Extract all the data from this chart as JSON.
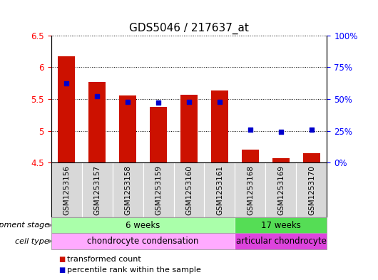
{
  "title": "GDS5046 / 217637_at",
  "samples": [
    "GSM1253156",
    "GSM1253157",
    "GSM1253158",
    "GSM1253159",
    "GSM1253160",
    "GSM1253161",
    "GSM1253168",
    "GSM1253169",
    "GSM1253170"
  ],
  "red_values": [
    6.17,
    5.77,
    5.56,
    5.38,
    5.57,
    5.63,
    4.7,
    4.57,
    4.65
  ],
  "blue_pct": [
    62,
    52,
    48,
    47,
    48,
    48,
    26,
    24,
    26
  ],
  "ylim_left": [
    4.5,
    6.5
  ],
  "ylim_right": [
    0,
    100
  ],
  "yticks_left": [
    4.5,
    5.0,
    5.5,
    6.0,
    6.5
  ],
  "ytick_labels_left": [
    "4.5",
    "5",
    "5.5",
    "6",
    "6.5"
  ],
  "yticks_right": [
    0,
    25,
    50,
    75,
    100
  ],
  "ytick_labels_right": [
    "0%",
    "25%",
    "50%",
    "75%",
    "100%"
  ],
  "bar_bottom": 4.5,
  "red_color": "#cc1100",
  "blue_color": "#0000cc",
  "dev_stage_colors": [
    "#aaffaa",
    "#55dd55"
  ],
  "cell_type_colors": [
    "#ffaaff",
    "#dd44dd"
  ],
  "legend_items": [
    "transformed count",
    "percentile rank within the sample"
  ],
  "background_color": "#ffffff",
  "title_fontsize": 11,
  "tick_fontsize": 8.5,
  "bar_width": 0.55,
  "group_split": 6,
  "dev_stage_labels": [
    "6 weeks",
    "17 weeks"
  ],
  "cell_type_labels": [
    "chondrocyte condensation",
    "articular chondrocyte"
  ],
  "row_label_dev": "development stage",
  "row_label_cell": "cell type"
}
